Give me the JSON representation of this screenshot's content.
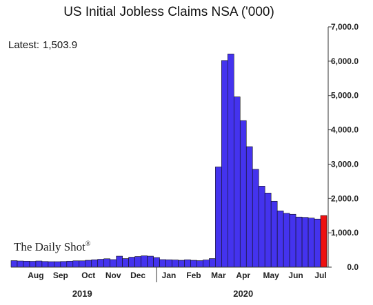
{
  "chart_data": {
    "type": "bar",
    "title": "US Initial Jobless Claims NSA ('000)",
    "latest_label": "Latest:",
    "latest_value": "1,503.9",
    "watermark": "The Daily Shot",
    "watermark_mark": "®",
    "xlabel": "",
    "ylabel": "",
    "ylim": [
      0,
      7000
    ],
    "y_ticks": [
      "0.0",
      "1,000.0",
      "2,000.0",
      "3,000.0",
      "4,000.0",
      "5,000.0",
      "6,000.0",
      "7,000.0"
    ],
    "y_tick_values": [
      0,
      1000,
      2000,
      3000,
      4000,
      5000,
      6000,
      7000
    ],
    "x_month_labels": [
      {
        "label": "Aug",
        "bar_index": 4
      },
      {
        "label": "Sep",
        "bar_index": 8
      },
      {
        "label": "Oct",
        "bar_index": 12.5
      },
      {
        "label": "Nov",
        "bar_index": 16.5
      },
      {
        "label": "Dec",
        "bar_index": 20.5
      },
      {
        "label": "Jan",
        "bar_index": 25.5
      },
      {
        "label": "Feb",
        "bar_index": 29.5
      },
      {
        "label": "Mar",
        "bar_index": 33.5
      },
      {
        "label": "Apr",
        "bar_index": 37.5
      },
      {
        "label": "May",
        "bar_index": 42
      },
      {
        "label": "Jun",
        "bar_index": 46
      },
      {
        "label": "Jul",
        "bar_index": 50
      }
    ],
    "year_divider_bar_index": 23.5,
    "years": [
      {
        "label": "2019",
        "bar_index": 11.5
      },
      {
        "label": "2020",
        "bar_index": 37.5
      }
    ],
    "grid": false,
    "legend": "none",
    "colors": {
      "bars": "#4433ee",
      "latest_bar": "#ee1111",
      "bar_edge": "#111111"
    },
    "values": [
      190,
      180,
      175,
      170,
      180,
      165,
      160,
      160,
      165,
      175,
      185,
      185,
      200,
      215,
      230,
      245,
      220,
      320,
      250,
      290,
      310,
      330,
      320,
      280,
      220,
      215,
      210,
      200,
      215,
      200,
      190,
      210,
      250,
      2920,
      6020,
      6210,
      4960,
      4270,
      3510,
      2850,
      2360,
      2160,
      1920,
      1640,
      1570,
      1540,
      1460,
      1450,
      1430,
      1400,
      1504
    ]
  }
}
